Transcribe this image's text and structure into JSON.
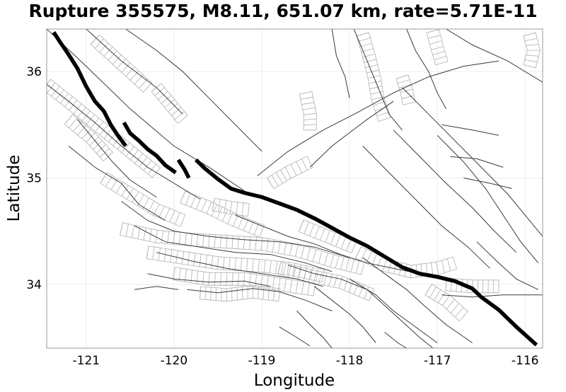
{
  "chart_data": {
    "type": "map",
    "title": "Rupture 355575, M8.11, 651.07 km, rate=5.71E-11",
    "xlabel": "Longitude",
    "ylabel": "Latitude",
    "xlim": [
      -121.45,
      -115.8
    ],
    "ylim": [
      33.4,
      36.4
    ],
    "xticks": [
      -121,
      -120,
      -119,
      -118,
      -117,
      -116
    ],
    "xtick_labels": [
      "-121",
      "-120",
      "-119",
      "-118",
      "-117",
      "-116"
    ],
    "yticks": [
      34,
      35,
      36
    ],
    "ytick_labels": [
      "34",
      "35",
      "36"
    ],
    "grid": true,
    "colors": {
      "rupture": "#000000",
      "fault": "#3a3a3a",
      "patch": "#b0b0b0"
    },
    "rupture_segments": [
      [
        [
          -121.37,
          36.37
        ],
        [
          -121.3,
          36.28
        ],
        [
          -121.2,
          36.16
        ],
        [
          -121.1,
          36.03
        ],
        [
          -121.0,
          35.86
        ],
        [
          -120.9,
          35.72
        ],
        [
          -120.8,
          35.63
        ],
        [
          -120.72,
          35.5
        ],
        [
          -120.64,
          35.4
        ],
        [
          -120.55,
          35.3
        ]
      ],
      [
        [
          -120.57,
          35.52
        ],
        [
          -120.5,
          35.42
        ],
        [
          -120.4,
          35.35
        ],
        [
          -120.3,
          35.27
        ],
        [
          -120.2,
          35.21
        ],
        [
          -120.1,
          35.12
        ],
        [
          -119.98,
          35.05
        ]
      ],
      [
        [
          -119.95,
          35.17
        ],
        [
          -119.88,
          35.08
        ],
        [
          -119.83,
          35.0
        ]
      ],
      [
        [
          -119.75,
          35.17
        ],
        [
          -119.65,
          35.09
        ],
        [
          -119.5,
          34.99
        ],
        [
          -119.35,
          34.9
        ],
        [
          -119.2,
          34.86
        ],
        [
          -119.0,
          34.82
        ],
        [
          -118.8,
          34.76
        ],
        [
          -118.6,
          34.7
        ],
        [
          -118.4,
          34.62
        ],
        [
          -118.2,
          34.53
        ],
        [
          -118.0,
          34.44
        ],
        [
          -117.8,
          34.36
        ],
        [
          -117.6,
          34.26
        ],
        [
          -117.4,
          34.16
        ],
        [
          -117.2,
          34.1
        ],
        [
          -117.0,
          34.07
        ],
        [
          -116.8,
          34.03
        ],
        [
          -116.6,
          33.96
        ],
        [
          -116.5,
          33.88
        ],
        [
          -116.3,
          33.76
        ],
        [
          -116.1,
          33.6
        ],
        [
          -115.87,
          33.43
        ]
      ]
    ],
    "faults": [
      [
        [
          -121.45,
          36.4
        ],
        [
          -121.0,
          36.05
        ],
        [
          -120.5,
          35.65
        ],
        [
          -120.0,
          35.3
        ],
        [
          -119.6,
          35.1
        ],
        [
          -119.2,
          34.88
        ]
      ],
      [
        [
          -121.45,
          35.88
        ],
        [
          -121.2,
          35.72
        ],
        [
          -120.9,
          35.52
        ],
        [
          -120.6,
          35.3
        ],
        [
          -120.3,
          35.1
        ],
        [
          -120.0,
          34.95
        ],
        [
          -119.7,
          34.8
        ]
      ],
      [
        [
          -121.1,
          35.55
        ],
        [
          -120.9,
          35.35
        ],
        [
          -120.7,
          35.15
        ],
        [
          -120.5,
          34.98
        ],
        [
          -120.2,
          34.82
        ]
      ],
      [
        [
          -120.55,
          36.4
        ],
        [
          -120.2,
          36.2
        ],
        [
          -119.9,
          36.0
        ],
        [
          -119.6,
          35.75
        ],
        [
          -119.3,
          35.5
        ],
        [
          -119.0,
          35.25
        ]
      ],
      [
        [
          -121.0,
          36.4
        ],
        [
          -120.6,
          36.1
        ],
        [
          -120.2,
          35.85
        ],
        [
          -119.9,
          35.6
        ]
      ],
      [
        [
          -121.2,
          35.3
        ],
        [
          -120.9,
          35.1
        ],
        [
          -120.6,
          34.95
        ],
        [
          -120.4,
          34.75
        ],
        [
          -120.1,
          34.6
        ]
      ],
      [
        [
          -120.6,
          34.78
        ],
        [
          -120.3,
          34.6
        ],
        [
          -120.0,
          34.5
        ],
        [
          -119.6,
          34.45
        ],
        [
          -119.2,
          34.42
        ],
        [
          -118.8,
          34.4
        ],
        [
          -118.4,
          34.35
        ],
        [
          -118.0,
          34.25
        ]
      ],
      [
        [
          -120.45,
          34.55
        ],
        [
          -120.1,
          34.4
        ],
        [
          -119.7,
          34.35
        ],
        [
          -119.3,
          34.3
        ],
        [
          -118.9,
          34.28
        ],
        [
          -118.5,
          34.2
        ],
        [
          -118.2,
          34.12
        ]
      ],
      [
        [
          -120.2,
          34.3
        ],
        [
          -119.8,
          34.22
        ],
        [
          -119.4,
          34.15
        ],
        [
          -119.0,
          34.1
        ],
        [
          -118.6,
          34.05
        ],
        [
          -118.3,
          33.98
        ]
      ],
      [
        [
          -120.3,
          34.1
        ],
        [
          -120.0,
          34.05
        ],
        [
          -119.6,
          34.02
        ],
        [
          -119.2,
          34.03
        ],
        [
          -118.9,
          33.98
        ]
      ],
      [
        [
          -119.85,
          33.95
        ],
        [
          -119.5,
          33.92
        ],
        [
          -119.1,
          33.96
        ],
        [
          -118.8,
          33.93
        ],
        [
          -118.5,
          33.85
        ],
        [
          -118.2,
          33.75
        ]
      ],
      [
        [
          -119.3,
          34.65
        ],
        [
          -119.0,
          34.55
        ],
        [
          -118.7,
          34.45
        ],
        [
          -118.4,
          34.38
        ],
        [
          -118.1,
          34.28
        ],
        [
          -117.8,
          34.2
        ],
        [
          -117.5,
          34.15
        ],
        [
          -117.2,
          34.1
        ]
      ],
      [
        [
          -118.7,
          34.18
        ],
        [
          -118.4,
          34.1
        ],
        [
          -118.1,
          34.05
        ],
        [
          -117.8,
          33.95
        ],
        [
          -117.6,
          33.8
        ],
        [
          -117.4,
          33.65
        ],
        [
          -117.2,
          33.5
        ],
        [
          -117.05,
          33.4
        ]
      ],
      [
        [
          -118.4,
          33.98
        ],
        [
          -118.2,
          33.85
        ],
        [
          -118.0,
          33.72
        ],
        [
          -117.85,
          33.6
        ],
        [
          -117.7,
          33.45
        ]
      ],
      [
        [
          -118.0,
          34.05
        ],
        [
          -117.7,
          33.9
        ],
        [
          -117.5,
          33.75
        ],
        [
          -117.25,
          33.6
        ],
        [
          -117.0,
          33.45
        ]
      ],
      [
        [
          -117.85,
          34.25
        ],
        [
          -117.6,
          34.1
        ],
        [
          -117.35,
          33.95
        ],
        [
          -117.15,
          33.8
        ],
        [
          -116.9,
          33.62
        ],
        [
          -116.6,
          33.45
        ]
      ],
      [
        [
          -118.6,
          33.75
        ],
        [
          -118.45,
          33.62
        ],
        [
          -118.3,
          33.5
        ],
        [
          -118.2,
          33.4
        ]
      ],
      [
        [
          -119.05,
          35.02
        ],
        [
          -118.7,
          35.25
        ],
        [
          -118.3,
          35.45
        ],
        [
          -117.9,
          35.62
        ],
        [
          -117.5,
          35.8
        ],
        [
          -117.1,
          35.95
        ],
        [
          -116.7,
          36.05
        ],
        [
          -116.3,
          36.1
        ]
      ],
      [
        [
          -118.45,
          35.1
        ],
        [
          -118.2,
          35.3
        ],
        [
          -117.8,
          35.55
        ],
        [
          -117.5,
          35.72
        ]
      ],
      [
        [
          -117.95,
          36.4
        ],
        [
          -117.85,
          36.2
        ],
        [
          -117.75,
          36.0
        ],
        [
          -117.65,
          35.8
        ],
        [
          -117.55,
          35.6
        ],
        [
          -117.4,
          35.45
        ]
      ],
      [
        [
          -118.2,
          36.4
        ],
        [
          -118.15,
          36.15
        ],
        [
          -118.05,
          35.95
        ],
        [
          -118.0,
          35.75
        ]
      ],
      [
        [
          -117.35,
          36.4
        ],
        [
          -117.25,
          36.2
        ],
        [
          -117.1,
          36.0
        ],
        [
          -117.0,
          35.8
        ],
        [
          -116.9,
          35.65
        ]
      ],
      [
        [
          -116.9,
          36.4
        ],
        [
          -116.6,
          36.25
        ],
        [
          -116.2,
          36.1
        ],
        [
          -115.8,
          35.9
        ]
      ],
      [
        [
          -117.4,
          35.85
        ],
        [
          -117.1,
          35.6
        ],
        [
          -116.8,
          35.35
        ],
        [
          -116.5,
          35.1
        ],
        [
          -116.2,
          34.85
        ],
        [
          -115.95,
          34.6
        ],
        [
          -115.8,
          34.45
        ]
      ],
      [
        [
          -117.85,
          35.3
        ],
        [
          -117.55,
          35.05
        ],
        [
          -117.25,
          34.8
        ],
        [
          -116.95,
          34.55
        ],
        [
          -116.65,
          34.35
        ],
        [
          -116.4,
          34.15
        ]
      ],
      [
        [
          -117.5,
          35.45
        ],
        [
          -117.2,
          35.2
        ],
        [
          -116.9,
          34.95
        ],
        [
          -116.6,
          34.72
        ],
        [
          -116.35,
          34.5
        ],
        [
          -116.1,
          34.3
        ]
      ],
      [
        [
          -117.0,
          35.4
        ],
        [
          -116.7,
          35.15
        ],
        [
          -116.45,
          34.9
        ],
        [
          -116.25,
          34.65
        ],
        [
          -116.05,
          34.4
        ],
        [
          -115.85,
          34.2
        ]
      ],
      [
        [
          -116.95,
          35.5
        ],
        [
          -116.6,
          35.45
        ],
        [
          -116.3,
          35.4
        ]
      ],
      [
        [
          -116.85,
          35.2
        ],
        [
          -116.55,
          35.18
        ],
        [
          -116.25,
          35.1
        ]
      ],
      [
        [
          -116.7,
          35.0
        ],
        [
          -116.4,
          34.95
        ],
        [
          -116.15,
          34.9
        ]
      ],
      [
        [
          -116.55,
          34.4
        ],
        [
          -116.3,
          34.2
        ],
        [
          -116.1,
          34.05
        ],
        [
          -115.85,
          33.95
        ]
      ],
      [
        [
          -116.95,
          33.9
        ],
        [
          -116.6,
          33.88
        ],
        [
          -116.25,
          33.9
        ],
        [
          -115.8,
          33.9
        ]
      ],
      [
        [
          -117.6,
          33.55
        ],
        [
          -117.45,
          33.45
        ],
        [
          -117.35,
          33.4
        ]
      ],
      [
        [
          -120.45,
          33.95
        ],
        [
          -120.2,
          33.98
        ],
        [
          -119.95,
          33.95
        ]
      ],
      [
        [
          -118.8,
          33.6
        ],
        [
          -118.6,
          33.5
        ],
        [
          -118.45,
          33.42
        ]
      ]
    ],
    "patch_strips": [
      [
        [
          -121.45,
          35.88
        ],
        [
          -121.1,
          35.65
        ],
        [
          -120.8,
          35.45
        ],
        [
          -120.5,
          35.25
        ],
        [
          -120.2,
          35.05
        ]
      ],
      [
        [
          -120.8,
          35.0
        ],
        [
          -120.5,
          34.85
        ],
        [
          -120.2,
          34.7
        ],
        [
          -119.9,
          34.6
        ]
      ],
      [
        [
          -120.6,
          34.52
        ],
        [
          -120.2,
          34.45
        ],
        [
          -119.8,
          34.42
        ],
        [
          -119.4,
          34.4
        ],
        [
          -119.0,
          34.38
        ],
        [
          -118.6,
          34.32
        ],
        [
          -118.2,
          34.22
        ],
        [
          -117.85,
          34.15
        ]
      ],
      [
        [
          -120.3,
          34.3
        ],
        [
          -119.9,
          34.25
        ],
        [
          -119.5,
          34.2
        ],
        [
          -119.1,
          34.18
        ],
        [
          -118.7,
          34.15
        ],
        [
          -118.3,
          34.08
        ]
      ],
      [
        [
          -120.0,
          34.1
        ],
        [
          -119.6,
          34.05
        ],
        [
          -119.2,
          34.05
        ],
        [
          -118.8,
          34.0
        ],
        [
          -118.4,
          33.95
        ]
      ],
      [
        [
          -118.8,
          34.15
        ],
        [
          -118.45,
          34.08
        ],
        [
          -118.1,
          34.02
        ],
        [
          -117.75,
          33.9
        ]
      ],
      [
        [
          -117.9,
          34.3
        ],
        [
          -117.6,
          34.18
        ],
        [
          -117.3,
          34.12
        ],
        [
          -117.0,
          34.15
        ],
        [
          -116.8,
          34.2
        ]
      ],
      [
        [
          -116.9,
          34.0
        ],
        [
          -116.6,
          33.98
        ],
        [
          -116.3,
          33.98
        ]
      ],
      [
        [
          -120.9,
          36.3
        ],
        [
          -120.7,
          36.15
        ],
        [
          -120.5,
          36.0
        ],
        [
          -120.3,
          35.85
        ]
      ],
      [
        [
          -120.2,
          35.85
        ],
        [
          -120.05,
          35.7
        ],
        [
          -119.9,
          35.55
        ]
      ],
      [
        [
          -119.55,
          34.75
        ],
        [
          -119.35,
          34.72
        ],
        [
          -119.15,
          34.7
        ]
      ],
      [
        [
          -118.9,
          34.95
        ],
        [
          -118.7,
          35.05
        ],
        [
          -118.45,
          35.15
        ]
      ],
      [
        [
          -117.85,
          36.35
        ],
        [
          -117.78,
          36.15
        ],
        [
          -117.72,
          35.95
        ],
        [
          -117.68,
          35.75
        ],
        [
          -117.6,
          35.55
        ]
      ],
      [
        [
          -118.5,
          35.8
        ],
        [
          -118.45,
          35.6
        ],
        [
          -118.45,
          35.45
        ]
      ],
      [
        [
          -115.95,
          36.35
        ],
        [
          -115.9,
          36.2
        ],
        [
          -115.95,
          36.05
        ]
      ],
      [
        [
          -117.4,
          35.95
        ],
        [
          -117.35,
          35.82
        ],
        [
          -117.32,
          35.7
        ]
      ],
      [
        [
          -117.05,
          36.38
        ],
        [
          -117.0,
          36.22
        ],
        [
          -116.95,
          36.08
        ]
      ],
      [
        [
          -121.2,
          35.55
        ],
        [
          -120.95,
          35.38
        ],
        [
          -120.75,
          35.2
        ]
      ],
      [
        [
          -119.9,
          34.82
        ],
        [
          -119.6,
          34.72
        ],
        [
          -119.3,
          34.6
        ],
        [
          -119.0,
          34.5
        ]
      ],
      [
        [
          -118.55,
          34.55
        ],
        [
          -118.25,
          34.45
        ],
        [
          -117.95,
          34.35
        ]
      ],
      [
        [
          -117.1,
          33.95
        ],
        [
          -116.9,
          33.85
        ],
        [
          -116.7,
          33.7
        ]
      ],
      [
        [
          -119.7,
          33.92
        ],
        [
          -119.4,
          33.9
        ],
        [
          -119.1,
          33.93
        ],
        [
          -118.8,
          33.9
        ]
      ]
    ]
  }
}
